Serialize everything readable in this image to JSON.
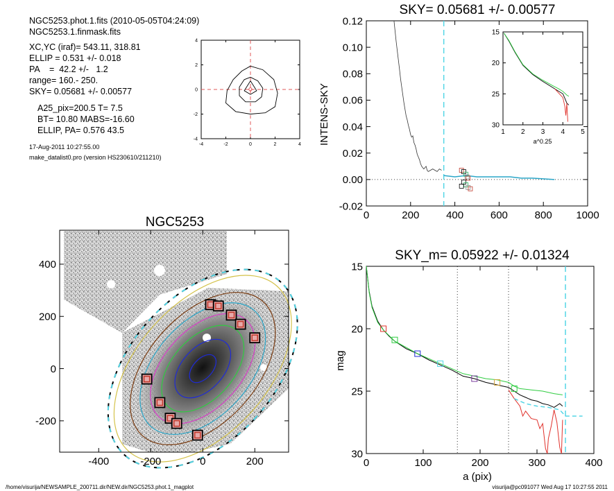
{
  "info": {
    "lines": [
      "NGC5253.phot.1.fits  (2010-05-05T04:24:09)",
      "NGC5253.1.finmask.fits",
      "XC,YC (iraf)=   543.11, 318.81",
      "ELLIP = 0.531 +/- 0.018",
      "PA    =  42.2 +/-   1.2",
      "range=  160.-  250.",
      "SKY= 0.05681 +/- 0.00577",
      "A25_pix=200.5   T= 7.5",
      "BT=  10.80   MABS=-16.60",
      "ELLIP, PA= 0.576    43.5",
      "17-Aug-2011 10:27:55.00",
      "make_datalist0.pro (version HS230610/211210)"
    ]
  },
  "footer": {
    "left": "/home/visurija/NEWSAMPLE_200711.dir/NEW.dir/NGC5253.phot.1_magplot",
    "right": "visurija@pc091077  Wed Aug 17 10:27:55 2011"
  },
  "chart_data": [
    {
      "id": "center-contour",
      "type": "line",
      "xlim": [
        -4,
        4
      ],
      "ylim": [
        -4,
        4
      ],
      "xticks": [
        -4,
        -2,
        0,
        2,
        4
      ],
      "yticks": [
        -4,
        -2,
        0,
        2,
        4
      ],
      "contours": [
        [
          [
            0,
            1.9
          ],
          [
            1.0,
            1.6
          ],
          [
            1.9,
            0.8
          ],
          [
            2.2,
            -0.3
          ],
          [
            2.0,
            -1.4
          ],
          [
            1.2,
            -1.9
          ],
          [
            0,
            -2.0
          ],
          [
            -1.2,
            -1.8
          ],
          [
            -2.0,
            -1.1
          ],
          [
            -1.9,
            -0.1
          ],
          [
            -1.4,
            0.8
          ],
          [
            -0.7,
            1.5
          ],
          [
            0,
            1.9
          ]
        ],
        [
          [
            0,
            1.0
          ],
          [
            0.6,
            0.7
          ],
          [
            1.0,
            0.1
          ],
          [
            0.9,
            -0.6
          ],
          [
            0.4,
            -1.0
          ],
          [
            -0.4,
            -1.0
          ],
          [
            -0.9,
            -0.5
          ],
          [
            -0.9,
            0.2
          ],
          [
            -0.5,
            0.8
          ],
          [
            0,
            1.0
          ]
        ],
        [
          [
            0,
            0.7
          ],
          [
            0.5,
            -0.1
          ],
          [
            0,
            -0.4
          ],
          [
            -0.5,
            -0.1
          ],
          [
            0,
            0.7
          ]
        ],
        [
          [
            0,
            0.2
          ],
          [
            0.15,
            0
          ],
          [
            0,
            -0.15
          ],
          [
            -0.15,
            0
          ],
          [
            0,
            0.2
          ]
        ]
      ]
    },
    {
      "id": "sky-plot",
      "type": "line",
      "title": "SKY= 0.05681 +/- 0.00577",
      "xlabel": "",
      "ylabel": "INTENS-SKY",
      "xlim": [
        0,
        1000
      ],
      "ylim": [
        -0.02,
        0.12
      ],
      "xticks": [
        0,
        200,
        400,
        600,
        800,
        1000
      ],
      "yticks": [
        -0.02,
        0.0,
        0.02,
        0.04,
        0.06,
        0.08,
        0.1,
        0.12
      ],
      "series": [
        {
          "values": [
            [
              125,
              0.125
            ],
            [
              130,
              0.112
            ],
            [
              135,
              0.104
            ],
            [
              140,
              0.097
            ],
            [
              145,
              0.09
            ],
            [
              150,
              0.083
            ],
            [
              155,
              0.076
            ],
            [
              160,
              0.07
            ],
            [
              165,
              0.064
            ],
            [
              170,
              0.058
            ],
            [
              175,
              0.053
            ],
            [
              180,
              0.048
            ],
            [
              185,
              0.045
            ],
            [
              190,
              0.041
            ],
            [
              195,
              0.038
            ],
            [
              200,
              0.034
            ],
            [
              205,
              0.032
            ],
            [
              210,
              0.033
            ],
            [
              215,
              0.028
            ],
            [
              220,
              0.026
            ],
            [
              225,
              0.023
            ],
            [
              230,
              0.019
            ],
            [
              235,
              0.017
            ],
            [
              240,
              0.015
            ],
            [
              245,
              0.012
            ],
            [
              250,
              0.01
            ],
            [
              255,
              0.009
            ],
            [
              260,
              0.008
            ],
            [
              265,
              0.009
            ],
            [
              270,
              0.01
            ],
            [
              275,
              0.007
            ],
            [
              280,
              0.006
            ],
            [
              290,
              0.007
            ],
            [
              300,
              0.008
            ],
            [
              310,
              0.007
            ],
            [
              320,
              0.006
            ],
            [
              330,
              0.008
            ],
            [
              340,
              0.007
            ]
          ]
        },
        {
          "values": [
            [
              350,
              0.003
            ],
            [
              400,
              0.002
            ],
            [
              450,
              0.003
            ],
            [
              500,
              0.002
            ],
            [
              550,
              0.002
            ],
            [
              600,
              0.002
            ],
            [
              650,
              0.002
            ],
            [
              700,
              0.001
            ],
            [
              750,
              0.001
            ],
            [
              800,
              0.0005
            ],
            [
              850,
              0.0
            ]
          ]
        }
      ],
      "sky_line_x": 350,
      "squares": [
        [
          430,
          0.007
        ],
        [
          440,
          0.006
        ],
        [
          450,
          0.004
        ],
        [
          455,
          0.002
        ],
        [
          460,
          0.001
        ],
        [
          440,
          -0.002
        ],
        [
          450,
          -0.004
        ],
        [
          460,
          -0.006
        ],
        [
          470,
          -0.007
        ],
        [
          430,
          -0.005
        ]
      ],
      "inset": {
        "xlabel": "a^0.25",
        "xlim": [
          1,
          5
        ],
        "ylim": [
          15,
          30
        ],
        "xticks": [
          1,
          2,
          3,
          4,
          5
        ],
        "yticks": [
          15,
          20,
          25,
          30
        ],
        "series": [
          {
            "values": [
              [
                1.05,
                15.2
              ],
              [
                1.3,
                16.5
              ],
              [
                1.6,
                18.3
              ],
              [
                2.0,
                20.4
              ],
              [
                2.5,
                21.9
              ],
              [
                3.0,
                23.0
              ],
              [
                3.5,
                24.0
              ],
              [
                3.8,
                24.6
              ],
              [
                4.0,
                25.0
              ],
              [
                4.1,
                25.7
              ],
              [
                4.2,
                26.5
              ],
              [
                4.3,
                26.8
              ]
            ]
          },
          {
            "values": [
              [
                1.05,
                15.2
              ],
              [
                1.3,
                16.4
              ],
              [
                1.6,
                18.2
              ],
              [
                2.0,
                20.3
              ],
              [
                2.5,
                21.8
              ],
              [
                3.0,
                22.8
              ],
              [
                3.5,
                23.7
              ],
              [
                3.8,
                24.2
              ],
              [
                4.0,
                24.6
              ],
              [
                4.2,
                25.2
              ],
              [
                4.3,
                25.4
              ]
            ]
          },
          {
            "values": [
              [
                3.6,
                24.2
              ],
              [
                3.8,
                24.9
              ],
              [
                4.0,
                25.6
              ],
              [
                4.1,
                27.0
              ],
              [
                4.15,
                28.5
              ],
              [
                4.2,
                26.5
              ],
              [
                4.25,
                29.5
              ]
            ]
          }
        ]
      }
    },
    {
      "id": "galaxy-image",
      "type": "scatter",
      "title": "NGC5253",
      "xlim": [
        -550,
        330
      ],
      "ylim": [
        -320,
        530
      ],
      "xticks": [
        -400,
        -200,
        0,
        200
      ],
      "yticks": [
        -200,
        0,
        200,
        400
      ],
      "ellipse": {
        "cx": 0,
        "cy": 0,
        "a25": 200.5,
        "pa": 42.2
      },
      "squares": [
        [
          30,
          245
        ],
        [
          60,
          240
        ],
        [
          110,
          205
        ],
        [
          145,
          170
        ],
        [
          200,
          118
        ],
        [
          -215,
          -40
        ],
        [
          -165,
          -130
        ],
        [
          -125,
          -190
        ],
        [
          -100,
          -210
        ],
        [
          -20,
          -255
        ]
      ]
    },
    {
      "id": "mag-profile",
      "type": "line",
      "title": "SKY_m=  0.05922 +/- 0.01324",
      "xlabel": "a (pix)",
      "ylabel": "mag",
      "xlim": [
        0,
        400
      ],
      "ylim": [
        15,
        30
      ],
      "xticks": [
        0,
        100,
        200,
        300,
        400
      ],
      "yticks": [
        15,
        20,
        25,
        30
      ],
      "vlines": [
        160,
        250
      ],
      "sky_line_x": 350,
      "series": [
        {
          "values": [
            [
              0,
              15.0
            ],
            [
              5,
              17.0
            ],
            [
              10,
              18.2
            ],
            [
              20,
              19.4
            ],
            [
              30,
              20.1
            ],
            [
              40,
              20.6
            ],
            [
              50,
              21.0
            ],
            [
              70,
              21.6
            ],
            [
              90,
              22.0
            ],
            [
              110,
              22.5
            ],
            [
              130,
              22.9
            ],
            [
              150,
              23.3
            ],
            [
              170,
              23.8
            ],
            [
              190,
              24.0
            ],
            [
              210,
              24.3
            ],
            [
              230,
              24.5
            ],
            [
              250,
              24.7
            ],
            [
              260,
              25.0
            ],
            [
              270,
              25.3
            ],
            [
              280,
              25.5
            ],
            [
              290,
              25.7
            ],
            [
              300,
              25.8
            ],
            [
              310,
              26.0
            ],
            [
              320,
              26.1
            ],
            [
              330,
              26.3
            ],
            [
              340,
              26.0
            ],
            [
              345,
              26.2
            ]
          ]
        },
        {
          "values": [
            [
              0,
              15.0
            ],
            [
              5,
              17.1
            ],
            [
              10,
              18.3
            ],
            [
              20,
              19.5
            ],
            [
              30,
              20.1
            ],
            [
              50,
              21.0
            ],
            [
              70,
              21.5
            ],
            [
              90,
              22.0
            ],
            [
              110,
              22.4
            ],
            [
              130,
              22.8
            ],
            [
              150,
              23.2
            ],
            [
              170,
              23.6
            ],
            [
              190,
              23.8
            ],
            [
              210,
              24.0
            ],
            [
              230,
              24.1
            ],
            [
              250,
              24.3
            ],
            [
              260,
              24.6
            ],
            [
              270,
              24.8
            ],
            [
              290,
              24.9
            ],
            [
              310,
              25.0
            ],
            [
              330,
              25.2
            ],
            [
              345,
              25.3
            ]
          ]
        },
        {
          "values": [
            [
              250,
              24.9
            ],
            [
              260,
              25.6
            ],
            [
              270,
              26.2
            ],
            [
              275,
              27.0
            ],
            [
              280,
              26.6
            ],
            [
              285,
              26.9
            ],
            [
              290,
              27.2
            ],
            [
              300,
              27.3
            ],
            [
              305,
              28.0
            ],
            [
              310,
              27.6
            ],
            [
              315,
              29.6
            ],
            [
              318,
              30.0
            ],
            [
              320,
              28.8
            ],
            [
              325,
              27.8
            ],
            [
              330,
              26.5
            ],
            [
              335,
              27.5
            ],
            [
              340,
              29.5
            ],
            [
              343,
              30.0
            ],
            [
              345,
              27.3
            ]
          ]
        },
        {
          "values": [
            [
              260,
              25.6
            ],
            [
              280,
              26.0
            ],
            [
              300,
              26.2
            ],
            [
              320,
              26.3
            ],
            [
              340,
              26.5
            ],
            [
              350,
              27.0
            ],
            [
              380,
              27.0
            ]
          ]
        }
      ],
      "squares": [
        [
          30,
          20.0
        ],
        [
          50,
          20.9
        ],
        [
          90,
          22.0
        ],
        [
          130,
          22.8
        ],
        [
          190,
          24.0
        ],
        [
          230,
          24.3
        ],
        [
          260,
          24.8
        ]
      ]
    }
  ]
}
